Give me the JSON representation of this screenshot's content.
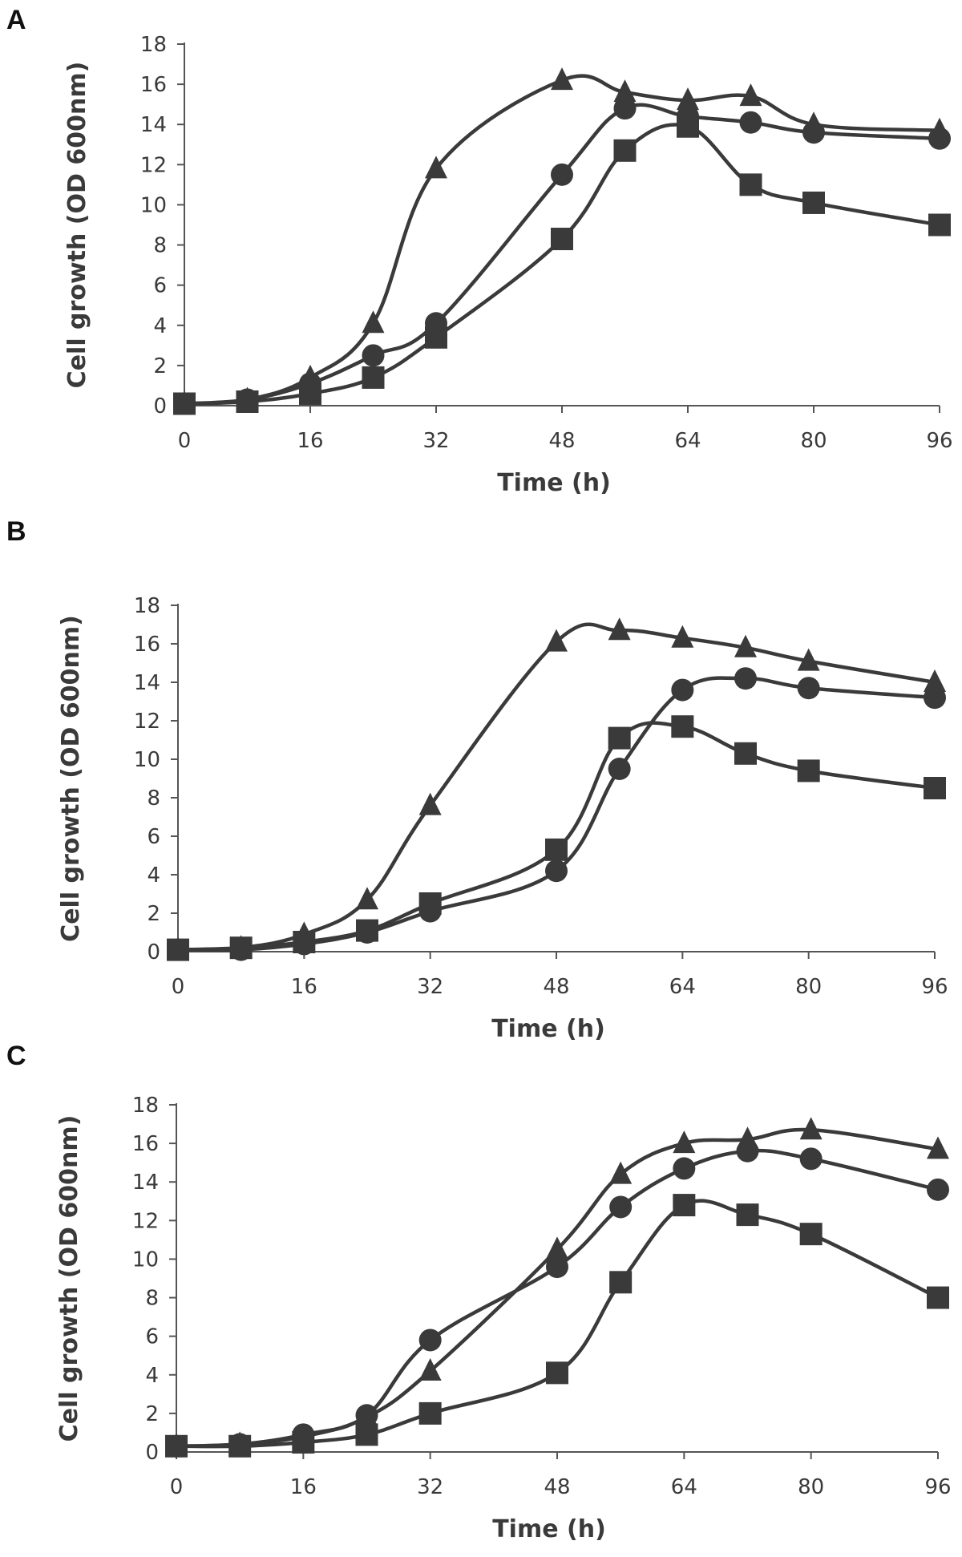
{
  "figure": {
    "panels": [
      "A",
      "B",
      "C"
    ]
  },
  "chart_data": [
    {
      "panel": "A",
      "type": "line",
      "title": "",
      "xlabel": "Time (h)",
      "ylabel": "Cell growth (OD 600nm)",
      "xlim": [
        0,
        96
      ],
      "ylim": [
        0,
        18
      ],
      "xticks": [
        0,
        16,
        32,
        48,
        64,
        80,
        96
      ],
      "yticks": [
        0,
        2,
        4,
        6,
        8,
        10,
        12,
        14,
        16,
        18
      ],
      "grid": false,
      "color": "#3a3a3a",
      "x": [
        0,
        8,
        16,
        24,
        32,
        48,
        56,
        64,
        72,
        80,
        96
      ],
      "series": [
        {
          "name": "triangle",
          "marker": "triangle",
          "values": [
            0.1,
            0.3,
            1.4,
            4.1,
            11.8,
            16.2,
            15.6,
            15.2,
            15.4,
            14.0,
            13.7
          ]
        },
        {
          "name": "circle",
          "marker": "circle",
          "values": [
            0.1,
            0.3,
            1.1,
            2.5,
            4.1,
            11.5,
            14.8,
            14.4,
            14.1,
            13.6,
            13.3
          ]
        },
        {
          "name": "square",
          "marker": "square",
          "values": [
            0.1,
            0.2,
            0.6,
            1.4,
            3.4,
            8.3,
            12.7,
            13.9,
            11.0,
            10.1,
            9.0
          ]
        }
      ]
    },
    {
      "panel": "B",
      "type": "line",
      "title": "",
      "xlabel": "Time (h)",
      "ylabel": "Cell growth (OD 600nm)",
      "xlim": [
        0,
        96
      ],
      "ylim": [
        0,
        18
      ],
      "xticks": [
        0,
        16,
        32,
        48,
        64,
        80,
        96
      ],
      "yticks": [
        0,
        2,
        4,
        6,
        8,
        10,
        12,
        14,
        16,
        18
      ],
      "grid": false,
      "color": "#3a3a3a",
      "x": [
        0,
        8,
        16,
        24,
        32,
        48,
        56,
        64,
        72,
        80,
        96
      ],
      "series": [
        {
          "name": "triangle",
          "marker": "triangle",
          "values": [
            0.1,
            0.2,
            0.9,
            2.7,
            7.6,
            16.1,
            16.7,
            16.3,
            15.8,
            15.1,
            14.0
          ]
        },
        {
          "name": "circle",
          "marker": "circle",
          "values": [
            0.1,
            0.1,
            0.4,
            1.0,
            2.1,
            4.2,
            9.5,
            13.6,
            14.2,
            13.7,
            13.2
          ]
        },
        {
          "name": "square",
          "marker": "square",
          "values": [
            0.1,
            0.2,
            0.5,
            1.1,
            2.5,
            5.3,
            11.1,
            11.7,
            10.3,
            9.4,
            8.5
          ]
        }
      ]
    },
    {
      "panel": "C",
      "type": "line",
      "title": "",
      "xlabel": "Time (h)",
      "ylabel": "Cell growth (OD 600nm)",
      "xlim": [
        0,
        96
      ],
      "ylim": [
        0,
        18
      ],
      "xticks": [
        0,
        16,
        32,
        48,
        64,
        80,
        96
      ],
      "yticks": [
        0,
        2,
        4,
        6,
        8,
        10,
        12,
        14,
        16,
        18
      ],
      "grid": false,
      "color": "#3a3a3a",
      "x": [
        0,
        8,
        16,
        24,
        32,
        48,
        56,
        64,
        72,
        80,
        96
      ],
      "series": [
        {
          "name": "triangle",
          "marker": "triangle",
          "values": [
            0.3,
            0.4,
            0.8,
            1.8,
            4.2,
            10.5,
            14.4,
            16.0,
            16.2,
            16.7,
            15.7
          ]
        },
        {
          "name": "circle",
          "marker": "circle",
          "values": [
            0.3,
            0.4,
            0.9,
            1.9,
            5.8,
            9.6,
            12.7,
            14.7,
            15.6,
            15.2,
            13.6
          ]
        },
        {
          "name": "square",
          "marker": "square",
          "values": [
            0.3,
            0.3,
            0.5,
            0.9,
            2.0,
            4.1,
            8.8,
            12.8,
            12.3,
            11.3,
            8.0
          ]
        }
      ]
    }
  ]
}
